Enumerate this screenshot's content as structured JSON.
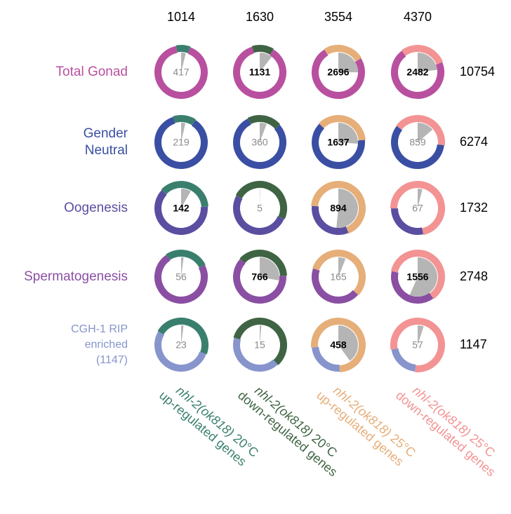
{
  "chart_data": {
    "type": "ring-overlap",
    "columns": [
      {
        "genotype": "nhl-2(ok818)",
        "temp": "20°C",
        "direction": "up-regulated genes",
        "total": 1014,
        "color": "#3a7f6e"
      },
      {
        "genotype": "nhl-2(ok818)",
        "temp": "20°C",
        "direction": "down-regulated genes",
        "total": 1630,
        "color": "#3f6443"
      },
      {
        "genotype": "nhl-2(ok818)",
        "temp": "25°C",
        "direction": "up-regulated genes",
        "total": 3554,
        "color": "#e6ae78"
      },
      {
        "genotype": "nhl-2(ok818)",
        "temp": "25°C",
        "direction": "down-regulated genes",
        "total": 4370,
        "color": "#f39393"
      }
    ],
    "rows": [
      {
        "label": [
          "Total Gonad"
        ],
        "total": 10754,
        "color": "#b8509f"
      },
      {
        "label": [
          "Gender",
          "Neutral"
        ],
        "total": 6274,
        "color": "#3a4fa3"
      },
      {
        "label": [
          "Oogenesis"
        ],
        "total": 1732,
        "color": "#5a4ea1"
      },
      {
        "label": [
          "Spermatogenesis"
        ],
        "total": 2748,
        "color": "#8a4fa3"
      },
      {
        "label": [
          "CGH-1 RIP",
          "enriched",
          "(1147)"
        ],
        "total": 1147,
        "color": "#8795cc"
      }
    ],
    "overlaps": [
      [
        417,
        1131,
        2696,
        2482
      ],
      [
        219,
        360,
        1637,
        859
      ],
      [
        142,
        5,
        894,
        67
      ],
      [
        56,
        766,
        165,
        1556
      ],
      [
        23,
        15,
        458,
        57
      ]
    ],
    "significant": [
      [
        false,
        true,
        true,
        true
      ],
      [
        false,
        false,
        true,
        false
      ],
      [
        true,
        false,
        true,
        false
      ],
      [
        false,
        true,
        false,
        true
      ],
      [
        false,
        false,
        true,
        false
      ]
    ],
    "overlap_color": "#b5b5b5"
  }
}
